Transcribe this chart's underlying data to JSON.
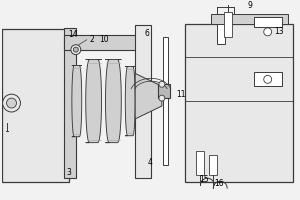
{
  "bg_color": "#f2f2f2",
  "line_color": "#3a3a3a",
  "face_light": "#e8e8e8",
  "face_mid": "#d0d0d0",
  "face_dark": "#b8b8b8",
  "white": "#ffffff"
}
